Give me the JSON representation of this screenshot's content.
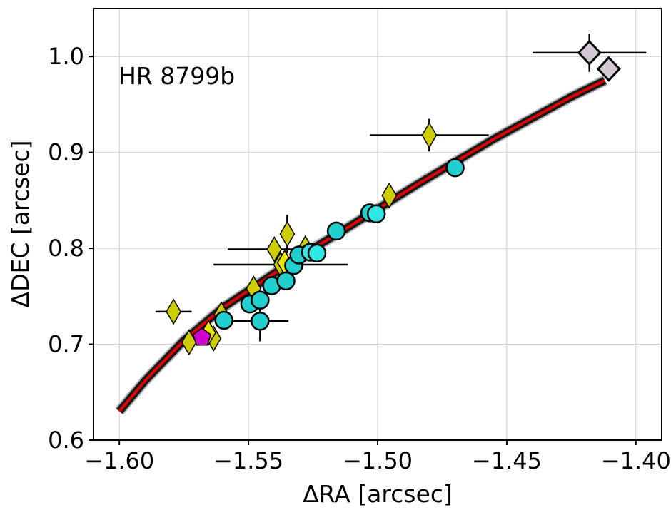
{
  "chart_data": {
    "type": "scatter",
    "annotation": "HR 8799b",
    "xlabel": "ΔRA [arcsec]",
    "ylabel": "ΔDEC [arcsec]",
    "xlim": [
      -1.61,
      -1.39
    ],
    "ylim": [
      0.6,
      1.05
    ],
    "x_ticks": [
      -1.6,
      -1.55,
      -1.5,
      -1.45,
      -1.4
    ],
    "x_tick_labels": [
      "−1.60",
      "−1.55",
      "−1.50",
      "−1.45",
      "−1.40"
    ],
    "y_ticks": [
      0.6,
      0.7,
      0.8,
      0.9,
      1.0
    ],
    "y_tick_labels": [
      "0.6",
      "0.7",
      "0.8",
      "0.9",
      "1.0"
    ],
    "grid": true,
    "colors": {
      "orbit_band": "#1a1a1a",
      "orbit_line": "#e00000",
      "yellow": "#cccc00",
      "yellow_light": "#e6e600",
      "cyan": "#22cfcf",
      "cyan_light": "#30e6e6",
      "magenta": "#d000d0",
      "lavender": "#d4c8d4",
      "outline": "#000000"
    },
    "orbit": {
      "x": [
        -1.6,
        -1.59,
        -1.575,
        -1.56,
        -1.545,
        -1.53,
        -1.515,
        -1.5,
        -1.485,
        -1.47,
        -1.455,
        -1.44,
        -1.425,
        -1.412
      ],
      "y": [
        0.63,
        0.662,
        0.704,
        0.738,
        0.765,
        0.792,
        0.816,
        0.841,
        0.866,
        0.89,
        0.914,
        0.936,
        0.958,
        0.975
      ]
    },
    "series": [
      {
        "marker": "diamond",
        "color_key": "yellow",
        "points": [
          {
            "x": -1.579,
            "y": 0.734,
            "xerr": 0.007,
            "yerr": 0.0
          },
          {
            "x": -1.573,
            "y": 0.702,
            "xerr": 0.0,
            "yerr": 0.0
          },
          {
            "x": -1.5635,
            "y": 0.706,
            "xerr": 0.003,
            "yerr": 0.0
          },
          {
            "x": -1.5605,
            "y": 0.731,
            "xerr": 0.0,
            "yerr": 0.0
          },
          {
            "x": -1.548,
            "y": 0.758,
            "xerr": 0.0,
            "yerr": 0.0
          },
          {
            "x": -1.5375,
            "y": 0.783,
            "xerr": 0.026,
            "yerr": 0.0
          },
          {
            "x": -1.54,
            "y": 0.799,
            "xerr": 0.018,
            "yerr": 0.0
          },
          {
            "x": -1.535,
            "y": 0.815,
            "xerr": 0.0,
            "yerr": 0.02
          },
          {
            "x": -1.528,
            "y": 0.8,
            "xerr": 0.0,
            "yerr": 0.0
          },
          {
            "x": -1.4955,
            "y": 0.855,
            "xerr": 0.0,
            "yerr": 0.0
          },
          {
            "x": -1.48,
            "y": 0.918,
            "xerr": 0.023,
            "yerr": 0.017
          }
        ]
      },
      {
        "marker": "diamond",
        "color_key": "yellow_light",
        "points": [
          {
            "x": -1.5655,
            "y": 0.712,
            "xerr": 0.0,
            "yerr": 0.0
          },
          {
            "x": -1.536,
            "y": 0.785,
            "xerr": 0.0,
            "yerr": 0.0
          }
        ]
      },
      {
        "marker": "circle",
        "color_key": "cyan",
        "points": [
          {
            "x": -1.5595,
            "y": 0.725,
            "xerr": 0.0,
            "yerr": 0.0
          },
          {
            "x": -1.5495,
            "y": 0.742,
            "xerr": 0.0,
            "yerr": 0.0
          },
          {
            "x": -1.5455,
            "y": 0.746,
            "xerr": 0.0,
            "yerr": 0.0
          },
          {
            "x": -1.5455,
            "y": 0.724,
            "xerr": 0.011,
            "yerr": 0.021
          },
          {
            "x": -1.541,
            "y": 0.761,
            "xerr": 0.0,
            "yerr": 0.0
          },
          {
            "x": -1.5355,
            "y": 0.766,
            "xerr": 0.0,
            "yerr": 0.0
          },
          {
            "x": -1.5325,
            "y": 0.782,
            "xerr": 0.0,
            "yerr": 0.0
          },
          {
            "x": -1.5305,
            "y": 0.793,
            "xerr": 0.0,
            "yerr": 0.0
          },
          {
            "x": -1.516,
            "y": 0.818,
            "xerr": 0.0,
            "yerr": 0.0
          },
          {
            "x": -1.503,
            "y": 0.837,
            "xerr": 0.0,
            "yerr": 0.0
          },
          {
            "x": -1.47,
            "y": 0.884,
            "xerr": 0.0,
            "yerr": 0.0
          }
        ]
      },
      {
        "marker": "circle",
        "color_key": "cyan_light",
        "points": [
          {
            "x": -1.526,
            "y": 0.796,
            "xerr": 0.0,
            "yerr": 0.0
          },
          {
            "x": -1.5235,
            "y": 0.795,
            "xerr": 0.0,
            "yerr": 0.0
          },
          {
            "x": -1.5005,
            "y": 0.836,
            "xerr": 0.0,
            "yerr": 0.0
          }
        ]
      },
      {
        "marker": "pentagon",
        "color_key": "magenta",
        "points": [
          {
            "x": -1.568,
            "y": 0.707,
            "xerr": 0.0,
            "yerr": 0.0
          }
        ]
      },
      {
        "marker": "diamond-large",
        "color_key": "lavender",
        "points": [
          {
            "x": -1.418,
            "y": 1.004,
            "xerr": 0.022,
            "yerr": 0.02
          },
          {
            "x": -1.4105,
            "y": 0.987,
            "xerr": 0.0,
            "yerr": 0.0
          }
        ]
      }
    ]
  }
}
